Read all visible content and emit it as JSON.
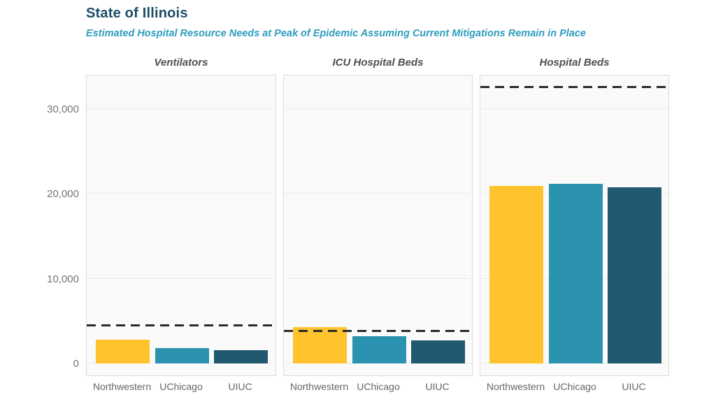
{
  "chart_data": {
    "type": "bar",
    "title": "State of Illinois",
    "subtitle": "Estimated Hospital Resource Needs at Peak of Epidemic Assuming Current Mitigations Remain in Place",
    "categories": [
      "Northwestern",
      "UChicago",
      "UIUC"
    ],
    "bar_colors": [
      "#FFC42D",
      "#2B93AF",
      "#215970"
    ],
    "capacity_line_color": "#2B2B2B",
    "grid": true,
    "legend_position": "none",
    "y_axis": {
      "max": 34130,
      "ticks": [
        {
          "label": "0",
          "value": 0
        },
        {
          "label": "10,000",
          "value": 10000
        },
        {
          "label": "20,000",
          "value": 20000
        },
        {
          "label": "30,000",
          "value": 30000
        }
      ]
    },
    "panels": [
      {
        "title": "Ventilators",
        "values": [
          2800,
          1850,
          1600
        ],
        "capacity": 4500
      },
      {
        "title": "ICU Hospital Beds",
        "values": [
          4300,
          3200,
          2750
        ],
        "capacity": 3800
      },
      {
        "title": "Hospital Beds",
        "values": [
          20900,
          21200,
          20800
        ],
        "capacity": 32600
      }
    ]
  }
}
